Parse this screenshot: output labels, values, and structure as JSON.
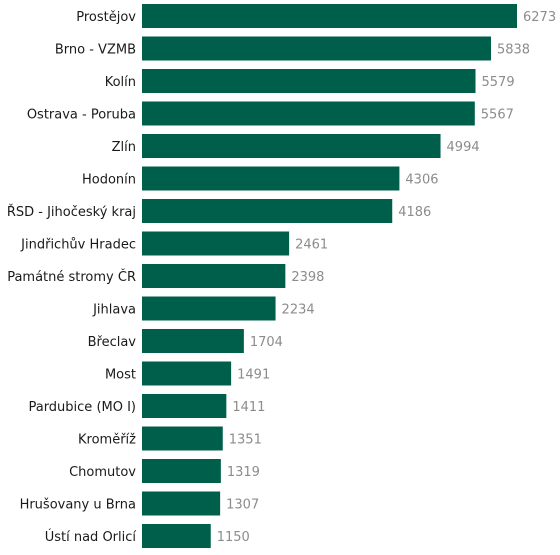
{
  "chart_data": {
    "type": "bar",
    "orientation": "horizontal",
    "title": "",
    "xlabel": "",
    "ylabel": "",
    "categories": [
      "Prostějov",
      "Brno - VZMB",
      "Kolín",
      "Ostrava - Poruba",
      "Zlín",
      "Hodonín",
      "ŘSD - Jihočeský kraj",
      "Jindřichův Hradec",
      "Památné stromy ČR",
      "Jihlava",
      "Břeclav",
      "Most",
      "Pardubice (MO I)",
      "Kroměříž",
      "Chomutov",
      "Hrušovany u Brna",
      "Ústí nad Orlicí"
    ],
    "values": [
      6273,
      5838,
      5579,
      5567,
      4994,
      4306,
      4186,
      2461,
      2398,
      2234,
      1704,
      1491,
      1411,
      1351,
      1319,
      1307,
      1150
    ],
    "xlim": [
      0,
      6273
    ],
    "grid": false,
    "legend": "none",
    "bar_color": "#005f4b"
  }
}
